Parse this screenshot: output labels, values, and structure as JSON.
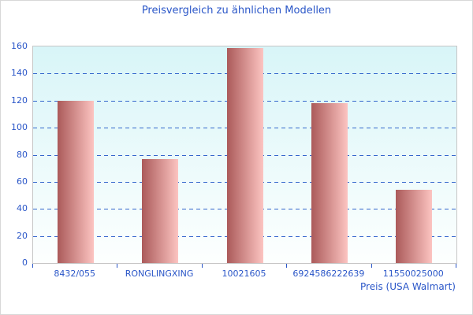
{
  "chart_data": {
    "type": "bar",
    "title": "Preisvergleich zu ähnlichen Modellen",
    "categories": [
      "8432/055",
      "RONGLINGXING",
      "10021605",
      "6924586222639",
      "11550025000"
    ],
    "values": [
      120,
      77,
      159,
      118,
      54
    ],
    "xlabel": "Preis (USA Walmart)",
    "ylabel": "",
    "ylim": [
      0,
      160
    ],
    "ytick_step": 20,
    "ytick_labels": [
      "0",
      "20",
      "40",
      "60",
      "80",
      "100",
      "120",
      "140",
      "160"
    ],
    "grid": "horizontal-dashed",
    "legend_position": "none"
  },
  "colors": {
    "text_blue": "#2a56c8",
    "gridline_blue": "#3366cc",
    "bar_gradient_left": "#ab5a5a",
    "bar_gradient_right": "#fcc4c1",
    "plot_bg_top": "#d8f5f8",
    "plot_bg_bottom": "#fdfffe",
    "plot_border": "#c6c6c6",
    "outer_border": "#d8d8d8",
    "background": "#ffffff"
  }
}
